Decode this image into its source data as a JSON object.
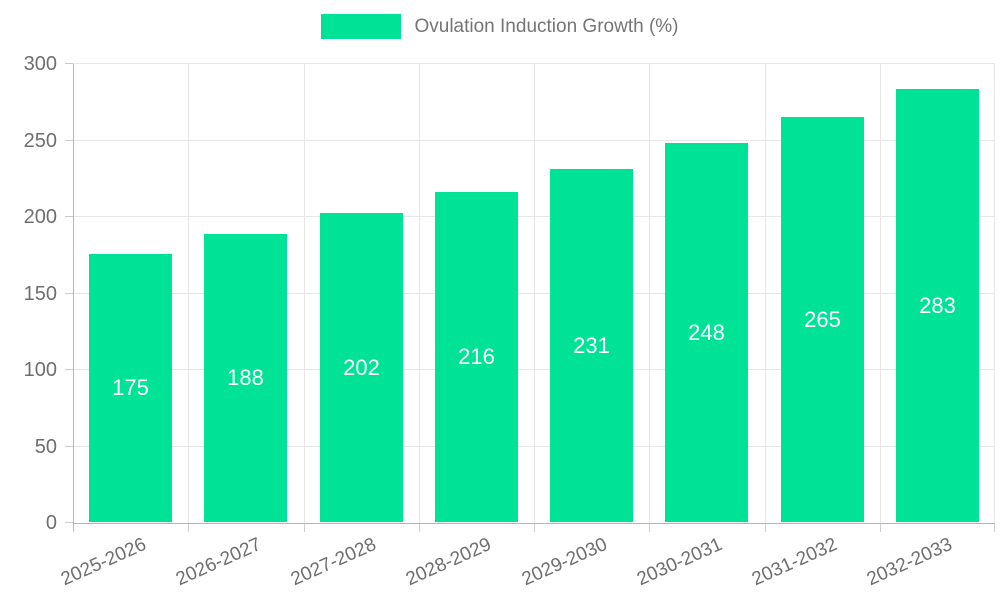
{
  "legend": {
    "label": "Ovulation Induction Growth (%)"
  },
  "colors": {
    "bar": "#00E396",
    "grid": "#e7e7e7",
    "axis": "#b6b6b6",
    "axis_label": "#6f6f6f",
    "legend_text": "#757575",
    "bar_value_text": "#ffffff"
  },
  "chart_data": {
    "type": "bar",
    "title": "",
    "categories": [
      "2025-2026",
      "2026-2027",
      "2027-2028",
      "2028-2029",
      "2029-2030",
      "2030-2031",
      "2031-2032",
      "2032-2033"
    ],
    "series": [
      {
        "name": "Ovulation Induction Growth (%)",
        "values": [
          175,
          188,
          202,
          216,
          231,
          248,
          265,
          283
        ]
      }
    ],
    "xlabel": "",
    "ylabel": "",
    "ylim": [
      0,
      300
    ],
    "yticks": [
      0,
      50,
      100,
      150,
      200,
      250,
      300
    ],
    "grid": true,
    "legend_position": "top",
    "value_labels": "inside-center"
  }
}
